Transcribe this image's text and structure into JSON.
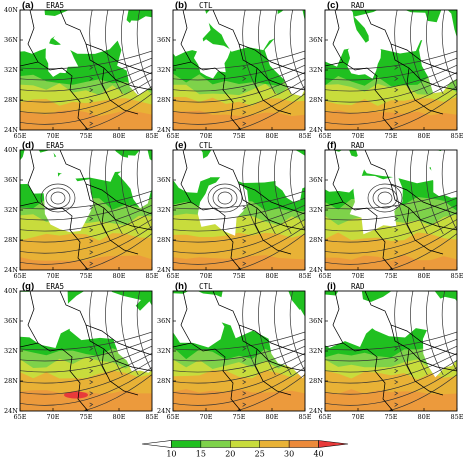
{
  "figure": {
    "panels": [
      {
        "letter": "(a)",
        "name": "ERA5",
        "row": 0,
        "col": 0
      },
      {
        "letter": "(b)",
        "name": "CTL",
        "row": 0,
        "col": 1
      },
      {
        "letter": "(c)",
        "name": "RAD",
        "row": 0,
        "col": 2
      },
      {
        "letter": "(d)",
        "name": "ERA5",
        "row": 1,
        "col": 0
      },
      {
        "letter": "(e)",
        "name": "CTL",
        "row": 1,
        "col": 1
      },
      {
        "letter": "(f)",
        "name": "RAD",
        "row": 1,
        "col": 2
      },
      {
        "letter": "(g)",
        "name": "ERA5",
        "row": 2,
        "col": 0
      },
      {
        "letter": "(h)",
        "name": "CTL",
        "row": 2,
        "col": 1
      },
      {
        "letter": "(i)",
        "name": "RAD",
        "row": 2,
        "col": 2
      }
    ],
    "lat_ticks": [
      {
        "value": 40,
        "label": "40N"
      },
      {
        "value": 36,
        "label": "36N"
      },
      {
        "value": 32,
        "label": "32N"
      },
      {
        "value": 28,
        "label": "28N"
      },
      {
        "value": 24,
        "label": "24N"
      }
    ],
    "lon_ticks": [
      {
        "value": 65,
        "label": "65E"
      },
      {
        "value": 70,
        "label": "70E"
      },
      {
        "value": 75,
        "label": "75E"
      },
      {
        "value": 80,
        "label": "80E"
      },
      {
        "value": 85,
        "label": "85E"
      }
    ],
    "colorbar": {
      "levels": [
        {
          "value": 10,
          "label": "10"
        },
        {
          "value": 15,
          "label": "15"
        },
        {
          "value": 20,
          "label": "20"
        },
        {
          "value": 25,
          "label": "25"
        },
        {
          "value": 30,
          "label": "30"
        },
        {
          "value": 40,
          "label": "40"
        }
      ],
      "colors": [
        "#20c020",
        "#7ed24a",
        "#c8dc3c",
        "#e8b236",
        "#ec8a3a",
        "#e83a3a"
      ]
    }
  }
}
